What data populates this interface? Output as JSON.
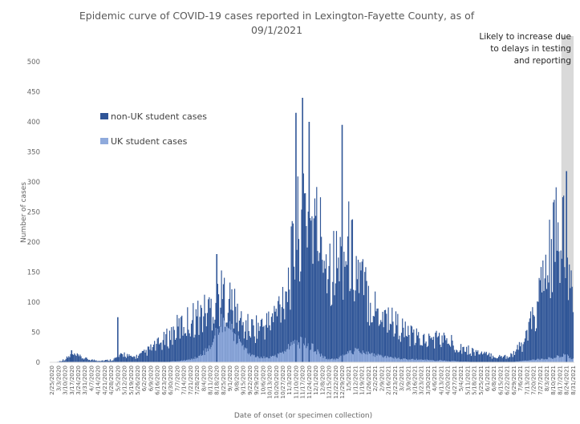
{
  "chart_data": {
    "type": "bar",
    "stacked": true,
    "title": "Epidemic curve of COVID-19 cases reported in Lexington-Fayette County, as of 09/1/2021",
    "xlabel": "Date of onset (or specimen collection)",
    "ylabel": "Number of cases",
    "ylim": [
      0,
      500
    ],
    "yticks": [
      0,
      50,
      100,
      150,
      200,
      250,
      300,
      350,
      400,
      450,
      500
    ],
    "grid": false,
    "legend_position": "top-left",
    "x_start": "2/25/2020",
    "x_end": "8/31/2021",
    "xtick_labels": [
      "2/25/2020",
      "3/3/2020",
      "3/10/2020",
      "3/17/2020",
      "3/24/2020",
      "3/31/2020",
      "4/7/2020",
      "4/14/2020",
      "4/21/2020",
      "4/28/2020",
      "5/5/2020",
      "5/12/2020",
      "5/19/2020",
      "5/26/2020",
      "6/2/2020",
      "6/9/2020",
      "6/16/2020",
      "6/23/2020",
      "6/30/2020",
      "7/7/2020",
      "7/14/2020",
      "7/21/2020",
      "7/28/2020",
      "8/4/2020",
      "8/11/2020",
      "8/18/2020",
      "8/25/2020",
      "9/1/2020",
      "9/8/2020",
      "9/15/2020",
      "9/22/2020",
      "9/29/2020",
      "10/6/2020",
      "10/13/2020",
      "10/20/2020",
      "10/27/2020",
      "11/3/2020",
      "11/10/2020",
      "11/17/2020",
      "11/24/2020",
      "12/1/2020",
      "12/8/2020",
      "12/15/2020",
      "12/22/2020",
      "12/29/2020",
      "1/5/2021",
      "1/12/2021",
      "1/19/2021",
      "1/26/2021",
      "2/2/2021",
      "2/9/2021",
      "2/16/2021",
      "2/23/2021",
      "3/2/2021",
      "3/9/2021",
      "3/16/2021",
      "3/23/2021",
      "3/30/2021",
      "4/6/2021",
      "4/13/2021",
      "4/20/2021",
      "4/27/2021",
      "5/4/2021",
      "5/11/2021",
      "5/18/2021",
      "5/25/2021",
      "6/1/2021",
      "6/8/2021",
      "6/15/2021",
      "6/22/2021",
      "6/29/2021",
      "7/6/2021",
      "7/13/2021",
      "7/20/2021",
      "7/27/2021",
      "8/3/2021",
      "8/10/2021",
      "8/17/2021",
      "8/24/2021",
      "8/31/2021"
    ],
    "series": [
      {
        "name": "non-UK student cases",
        "color": "#2f5597",
        "note": "approximate smoothed weekly daily-case levels (total of both series), read from gridlines",
        "weekly_totals": [
          0,
          1,
          5,
          12,
          10,
          6,
          4,
          3,
          3,
          4,
          8,
          14,
          8,
          10,
          15,
          22,
          28,
          35,
          45,
          55,
          62,
          70,
          75,
          80,
          90,
          100,
          110,
          100,
          80,
          60,
          55,
          58,
          60,
          65,
          80,
          110,
          140,
          200,
          260,
          240,
          220,
          200,
          170,
          160,
          170,
          190,
          160,
          130,
          110,
          90,
          80,
          75,
          65,
          55,
          45,
          40,
          38,
          35,
          40,
          38,
          35,
          30,
          25,
          20,
          18,
          15,
          12,
          10,
          9,
          10,
          15,
          25,
          45,
          70,
          110,
          150,
          190,
          220,
          170,
          80
        ],
        "peaks": [
          {
            "date": "3/17/2020",
            "value": 20
          },
          {
            "date": "5/5/2020",
            "value": 75
          },
          {
            "date": "8/18/2020",
            "value": 180
          },
          {
            "date": "11/10/2020",
            "value": 415
          },
          {
            "date": "11/17/2020",
            "value": 440
          },
          {
            "date": "11/24/2020",
            "value": 400
          },
          {
            "date": "12/29/2020",
            "value": 395
          },
          {
            "date": "8/24/2021",
            "value": 318
          }
        ]
      },
      {
        "name": "UK student cases",
        "color": "#8faadc",
        "weekly_values": [
          0,
          0,
          0,
          0,
          0,
          0,
          0,
          0,
          0,
          0,
          0,
          0,
          0,
          0,
          0,
          0,
          0,
          0,
          1,
          2,
          3,
          5,
          8,
          15,
          30,
          55,
          70,
          60,
          40,
          25,
          15,
          10,
          8,
          8,
          10,
          15,
          25,
          30,
          35,
          30,
          20,
          10,
          5,
          5,
          10,
          15,
          20,
          18,
          15,
          12,
          10,
          8,
          8,
          6,
          5,
          5,
          4,
          4,
          3,
          3,
          2,
          2,
          1,
          1,
          0,
          0,
          0,
          0,
          0,
          0,
          1,
          2,
          3,
          4,
          5,
          6,
          8,
          10,
          12,
          5
        ]
      }
    ],
    "shaded_region": {
      "from": "8/19/2021",
      "to": "8/31/2021"
    },
    "annotation": "Likely to increase due to delays in testing and reporting"
  }
}
